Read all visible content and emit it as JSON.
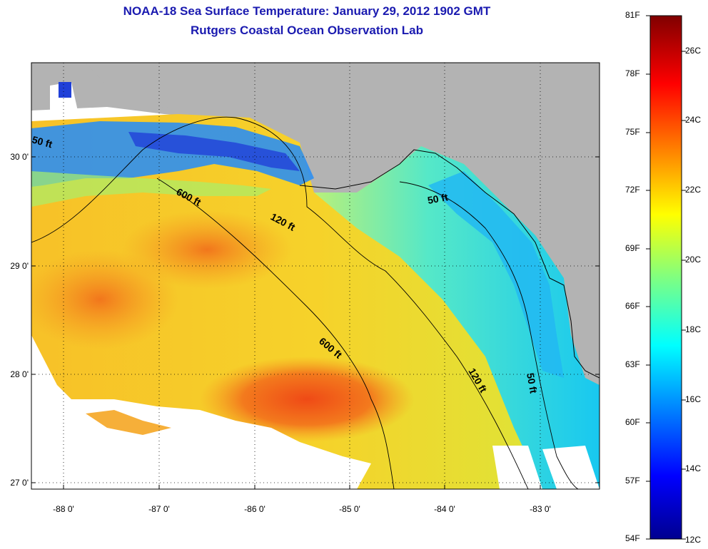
{
  "title_line1": "NOAA-18 Sea Surface Temperature:  January 29, 2012 1902 GMT",
  "title_line2": "Rutgers Coastal Ocean Observation Lab",
  "lon_labels": [
    "-88 0'",
    "-87 0'",
    "-86 0'",
    "-85 0'",
    "-84 0'",
    "-83 0'"
  ],
  "lat_labels": [
    "30 0'",
    "29 0'",
    "28 0'",
    "27 0'"
  ],
  "contours": {
    "c50_west": "50 ft",
    "c600_a": "600 ft",
    "c120_a": "120 ft",
    "c50_east": "50 ft",
    "c600_b": "600 ft",
    "c120_b": "120 ft",
    "c50_south": "50 ft"
  },
  "colorbar": {
    "fahrenheit": [
      "81F",
      "78F",
      "75F",
      "72F",
      "69F",
      "66F",
      "63F",
      "60F",
      "57F",
      "54F"
    ],
    "celsius": [
      "26C",
      "24C",
      "22C",
      "20C",
      "18C",
      "16C",
      "14C",
      "12C"
    ]
  },
  "colors": {
    "land": "#b3b3b3",
    "nodata": "#ffffff",
    "title": "#1a1ab0"
  }
}
